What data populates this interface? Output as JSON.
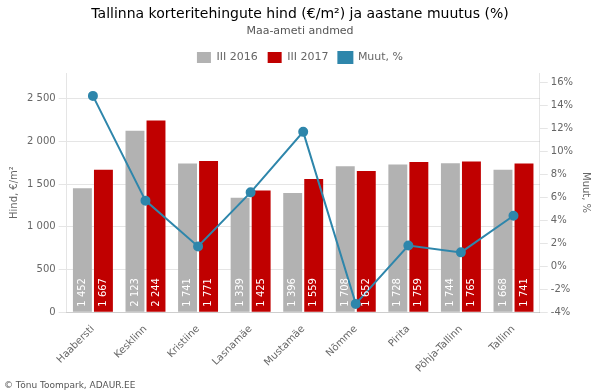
{
  "chart_data": {
    "type": "bar",
    "title": "Tallinna korteritehingute hind (€/m²) ja aastane muutus (%)",
    "subtitle": "Maa-ameti andmed",
    "ylabel": "Hind, €/m²",
    "y2label": "Muut, %",
    "annotations": [
      "© Tõnu Toompark, ADAUR.EE"
    ],
    "categories": [
      "Haabersti",
      "Kesklinn",
      "Kristiine",
      "Lasnamäe",
      "Mustamäe",
      "Nõmme",
      "Pirita",
      "Põhja-Tallinn",
      "Tallinn"
    ],
    "series": [
      {
        "name": "III 2016",
        "color": "#b2b2b2",
        "values": [
          1452,
          2123,
          1741,
          1339,
          1396,
          1708,
          1728,
          1744,
          1668
        ],
        "data_labels": true,
        "value_labels": [
          "1 452",
          "2 123",
          "1 741",
          "1 339",
          "1 396",
          "1 708",
          "1 728",
          "1 744",
          "1 668"
        ]
      },
      {
        "name": "III 2017",
        "color": "#c00000",
        "values": [
          1667,
          2244,
          1771,
          1425,
          1559,
          1652,
          1759,
          1765,
          1741
        ],
        "data_labels": true,
        "value_labels": [
          "1 667",
          "2 244",
          "1 771",
          "1 425",
          "1 559",
          "1 652",
          "1 759",
          "1 765",
          "1 741"
        ]
      },
      {
        "name": "Muut, %",
        "type": "line",
        "axis": "y2",
        "color": "#2e86ab",
        "marker": "circle",
        "values": [
          14.81,
          5.7,
          1.72,
          6.42,
          11.68,
          -3.28,
          1.79,
          1.2,
          4.38
        ]
      }
    ],
    "ylim": [
      0,
      2800
    ],
    "yticks": [
      0,
      500,
      {
        "value": 1000,
        "label": "1 000"
      },
      {
        "value": 1500,
        "label": "1 500"
      },
      {
        "value": 2000,
        "label": "2 000"
      },
      {
        "value": 2500,
        "label": "2 500"
      }
    ],
    "y2lim": [
      -4,
      16.8
    ],
    "y2ticks": [
      {
        "value": -4,
        "label": "-4%"
      },
      {
        "value": -2,
        "label": "-2%"
      },
      {
        "value": 0,
        "label": "0%"
      },
      {
        "value": 2,
        "label": "2%"
      },
      {
        "value": 4,
        "label": "4%"
      },
      {
        "value": 6,
        "label": "6%"
      },
      {
        "value": 8,
        "label": "8%"
      },
      {
        "value": 10,
        "label": "10%"
      },
      {
        "value": 12,
        "label": "12%"
      },
      {
        "value": 14,
        "label": "14%"
      },
      {
        "value": 16,
        "label": "16%"
      }
    ],
    "grid": true,
    "legend": "top"
  }
}
